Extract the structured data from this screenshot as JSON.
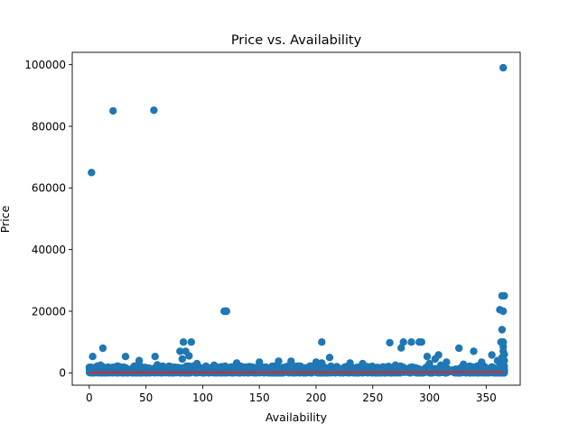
{
  "chart_data": {
    "type": "scatter",
    "title": "Price vs. Availability",
    "xlabel": "Availability",
    "ylabel": "Price",
    "xlim": [
      -15,
      380
    ],
    "ylim": [
      -4000,
      104000
    ],
    "xticks": [
      0,
      50,
      100,
      150,
      200,
      250,
      300,
      350
    ],
    "yticks": [
      0,
      20000,
      40000,
      60000,
      80000,
      100000
    ],
    "colors": {
      "points": "#1f77b4",
      "trend": "#d62728",
      "axes": "#000000"
    },
    "trend_line": {
      "x": [
        0,
        365
      ],
      "y": [
        150,
        250
      ]
    },
    "outliers": [
      {
        "x": 2,
        "y": 65000
      },
      {
        "x": 21,
        "y": 85000
      },
      {
        "x": 57,
        "y": 85200
      },
      {
        "x": 365,
        "y": 99000
      },
      {
        "x": 364,
        "y": 25000
      },
      {
        "x": 366,
        "y": 25000
      },
      {
        "x": 362,
        "y": 20500
      },
      {
        "x": 365,
        "y": 20000
      },
      {
        "x": 119,
        "y": 20000
      },
      {
        "x": 120,
        "y": 20000
      },
      {
        "x": 121,
        "y": 20000
      },
      {
        "x": 364,
        "y": 14000
      },
      {
        "x": 363,
        "y": 10000
      },
      {
        "x": 365,
        "y": 10000
      },
      {
        "x": 83,
        "y": 10000
      },
      {
        "x": 90,
        "y": 10000
      },
      {
        "x": 205,
        "y": 10000
      },
      {
        "x": 265,
        "y": 9800
      },
      {
        "x": 277,
        "y": 10000
      },
      {
        "x": 284,
        "y": 10000
      },
      {
        "x": 291,
        "y": 10000
      },
      {
        "x": 293,
        "y": 10000
      },
      {
        "x": 275,
        "y": 8100
      },
      {
        "x": 12,
        "y": 8000
      },
      {
        "x": 326,
        "y": 8000
      },
      {
        "x": 339,
        "y": 7000
      },
      {
        "x": 80,
        "y": 7000
      },
      {
        "x": 85,
        "y": 7000
      },
      {
        "x": 365,
        "y": 8500
      },
      {
        "x": 365,
        "y": 7000
      },
      {
        "x": 88,
        "y": 5500
      },
      {
        "x": 355,
        "y": 5800
      },
      {
        "x": 3,
        "y": 5300
      },
      {
        "x": 32,
        "y": 5300
      },
      {
        "x": 58,
        "y": 5300
      },
      {
        "x": 212,
        "y": 5000
      },
      {
        "x": 298,
        "y": 5300
      },
      {
        "x": 308,
        "y": 5800
      },
      {
        "x": 82,
        "y": 4500
      },
      {
        "x": 44,
        "y": 4000
      },
      {
        "x": 150,
        "y": 3500
      },
      {
        "x": 167,
        "y": 3800
      },
      {
        "x": 178,
        "y": 3800
      },
      {
        "x": 200,
        "y": 3500
      },
      {
        "x": 205,
        "y": 3200
      },
      {
        "x": 230,
        "y": 3200
      },
      {
        "x": 241,
        "y": 3000
      },
      {
        "x": 315,
        "y": 3500
      },
      {
        "x": 346,
        "y": 3500
      },
      {
        "x": 130,
        "y": 3200
      },
      {
        "x": 95,
        "y": 3000
      },
      {
        "x": 60,
        "y": 2600
      },
      {
        "x": 10,
        "y": 2500
      },
      {
        "x": 25,
        "y": 2200
      },
      {
        "x": 70,
        "y": 2000
      },
      {
        "x": 110,
        "y": 2500
      },
      {
        "x": 270,
        "y": 2500
      },
      {
        "x": 300,
        "y": 3000
      },
      {
        "x": 330,
        "y": 2800
      },
      {
        "x": 360,
        "y": 4000
      },
      {
        "x": 362,
        "y": 3000
      },
      {
        "x": 364,
        "y": 5000
      },
      {
        "x": 366,
        "y": 6000
      },
      {
        "x": 366,
        "y": 4000
      },
      {
        "x": 305,
        "y": 4500
      },
      {
        "x": 310,
        "y": 2500
      }
    ],
    "dense_band": {
      "x_range": [
        0,
        366
      ],
      "y_range": [
        0,
        2200
      ],
      "count": 1400
    }
  }
}
